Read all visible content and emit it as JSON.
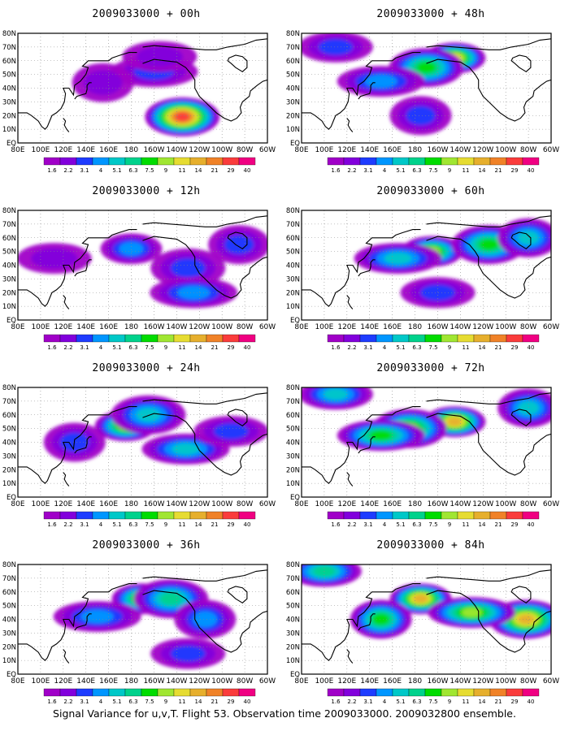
{
  "figure": {
    "caption": "Signal Variance for u,v,T. Flight 53. Observation time 2009033000. 2009032800 ensemble."
  },
  "chart_data": {
    "type": "heatmap",
    "x_ticks": [
      "80E",
      "100E",
      "120E",
      "140E",
      "160E",
      "180",
      "160W",
      "140W",
      "120W",
      "100W",
      "80W",
      "60W"
    ],
    "y_ticks": [
      "EQ",
      "10N",
      "20N",
      "30N",
      "40N",
      "50N",
      "60N",
      "70N",
      "80N"
    ],
    "x_range": [
      "80E",
      "60W"
    ],
    "y_range": [
      "EQ",
      "80N"
    ],
    "grid": true,
    "colorbar": {
      "levels": [
        "1.6",
        "2.2",
        "3.1",
        "4",
        "5.1",
        "6.3",
        "7.5",
        "9",
        "11",
        "14",
        "21",
        "29",
        "40"
      ],
      "colors": [
        "#a000c8",
        "#8200dc",
        "#1e3cff",
        "#0096ff",
        "#00c8c8",
        "#00d28c",
        "#00dc00",
        "#a0e632",
        "#e6dc32",
        "#e6af2d",
        "#f08228",
        "#fa3c3c",
        "#f00082"
      ]
    },
    "panels": [
      {
        "title": "2009033000 + 00h",
        "lead": "00h",
        "max_level": "14",
        "features": [
          {
            "lon": 225,
            "lat": 19,
            "level": 3
          },
          {
            "lon": 225,
            "lat": 19,
            "level": 11
          },
          {
            "lon": 200,
            "lat": 52,
            "level": 2
          },
          {
            "lon": 155,
            "lat": 44,
            "level": 1
          },
          {
            "lon": 205,
            "lat": 63,
            "level": 1
          }
        ]
      },
      {
        "title": "2009033000 + 12h",
        "lead": "12h",
        "max_level": "5.1",
        "features": [
          {
            "lon": 180,
            "lat": 52,
            "level": 3
          },
          {
            "lon": 230,
            "lat": 38,
            "level": 2
          },
          {
            "lon": 235,
            "lat": 20,
            "level": 3
          },
          {
            "lon": 275,
            "lat": 55,
            "level": 2
          },
          {
            "lon": 112,
            "lat": 45,
            "level": 1
          }
        ]
      },
      {
        "title": "2009033000 + 24h",
        "lead": "24h",
        "max_level": "9",
        "features": [
          {
            "lon": 175,
            "lat": 52,
            "level": 7
          },
          {
            "lon": 195,
            "lat": 60,
            "level": 4
          },
          {
            "lon": 228,
            "lat": 35,
            "level": 4
          },
          {
            "lon": 130,
            "lat": 40,
            "level": 2
          },
          {
            "lon": 268,
            "lat": 48,
            "level": 2
          }
        ]
      },
      {
        "title": "2009033000 + 36h",
        "lead": "36h",
        "max_level": "9",
        "features": [
          {
            "lon": 190,
            "lat": 55,
            "level": 7
          },
          {
            "lon": 215,
            "lat": 55,
            "level": 5
          },
          {
            "lon": 150,
            "lat": 42,
            "level": 3
          },
          {
            "lon": 245,
            "lat": 40,
            "level": 3
          },
          {
            "lon": 230,
            "lat": 15,
            "level": 2
          }
        ]
      },
      {
        "title": "2009033000 + 48h",
        "lead": "48h",
        "max_level": "11",
        "features": [
          {
            "lon": 215,
            "lat": 62,
            "level": 8
          },
          {
            "lon": 190,
            "lat": 55,
            "level": 6
          },
          {
            "lon": 150,
            "lat": 45,
            "level": 3
          },
          {
            "lon": 185,
            "lat": 20,
            "level": 2
          },
          {
            "lon": 110,
            "lat": 70,
            "level": 2
          }
        ]
      },
      {
        "title": "2009033000 + 60h",
        "lead": "60h",
        "max_level": "11",
        "features": [
          {
            "lon": 195,
            "lat": 50,
            "level": 7
          },
          {
            "lon": 245,
            "lat": 55,
            "level": 6
          },
          {
            "lon": 165,
            "lat": 45,
            "level": 4
          },
          {
            "lon": 280,
            "lat": 60,
            "level": 4
          },
          {
            "lon": 200,
            "lat": 20,
            "level": 2
          }
        ]
      },
      {
        "title": "2009033000 + 72h",
        "lead": "72h",
        "max_level": "14",
        "features": [
          {
            "lon": 215,
            "lat": 55,
            "level": 9
          },
          {
            "lon": 175,
            "lat": 50,
            "level": 7
          },
          {
            "lon": 150,
            "lat": 45,
            "level": 6
          },
          {
            "lon": 280,
            "lat": 65,
            "level": 4
          },
          {
            "lon": 110,
            "lat": 75,
            "level": 4
          }
        ]
      },
      {
        "title": "2009033000 + 84h",
        "lead": "84h",
        "max_level": "21",
        "features": [
          {
            "lon": 185,
            "lat": 55,
            "level": 9
          },
          {
            "lon": 278,
            "lat": 40,
            "level": 9
          },
          {
            "lon": 230,
            "lat": 45,
            "level": 7
          },
          {
            "lon": 150,
            "lat": 40,
            "level": 6
          },
          {
            "lon": 100,
            "lat": 75,
            "level": 5
          }
        ]
      }
    ]
  }
}
